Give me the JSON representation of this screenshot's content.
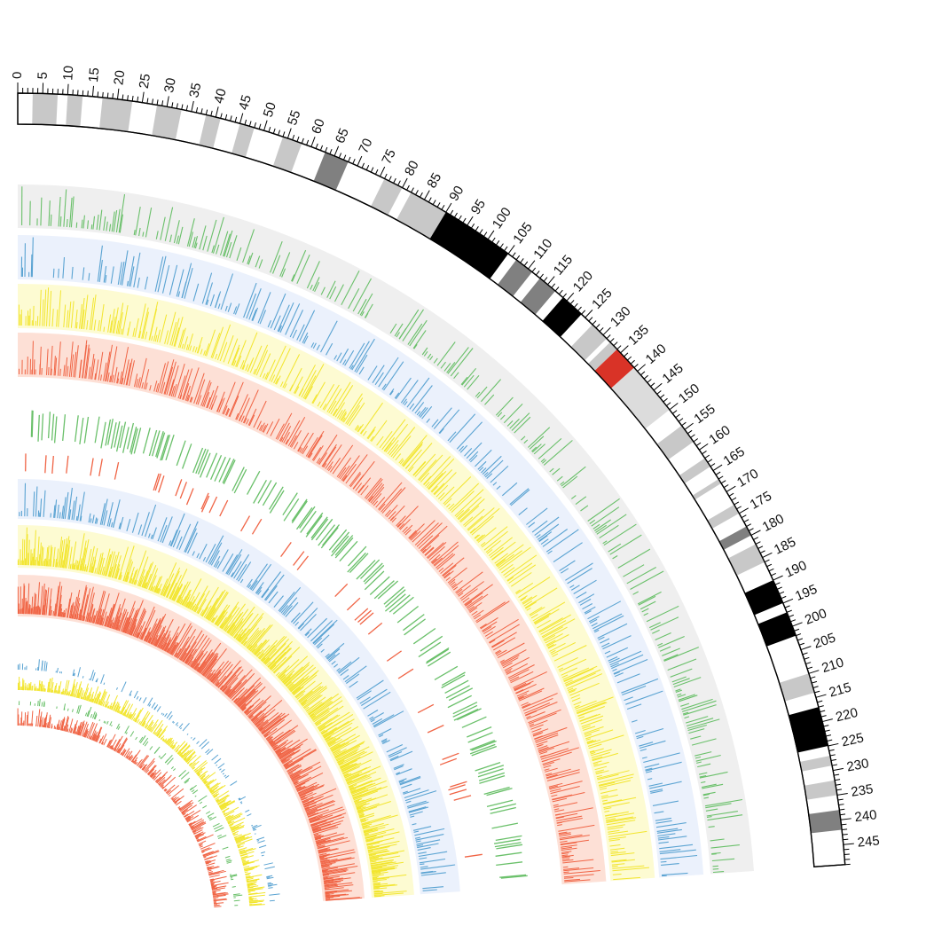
{
  "ideogram": {
    "tick_labels": [
      "0",
      "5",
      "10",
      "15",
      "20",
      "25",
      "30",
      "35",
      "40",
      "45",
      "50",
      "55",
      "60",
      "65",
      "70",
      "75",
      "80",
      "85",
      "90",
      "95",
      "100",
      "105",
      "110",
      "115",
      "120",
      "125",
      "130",
      "135",
      "140",
      "145",
      "150",
      "155",
      "160",
      "165",
      "170",
      "175",
      "180",
      "185",
      "190",
      "195",
      "200",
      "205",
      "210",
      "215",
      "220",
      "225",
      "230",
      "235",
      "240",
      "245"
    ],
    "max_mb": 249,
    "bands": [
      {
        "start": 3,
        "end": 8,
        "color": "#c8c8c8"
      },
      {
        "start": 10,
        "end": 13,
        "color": "#c8c8c8"
      },
      {
        "start": 17,
        "end": 23,
        "color": "#c8c8c8"
      },
      {
        "start": 28,
        "end": 33,
        "color": "#c8c8c8"
      },
      {
        "start": 38,
        "end": 41,
        "color": "#c8c8c8"
      },
      {
        "start": 45,
        "end": 48,
        "color": "#c8c8c8"
      },
      {
        "start": 54,
        "end": 58,
        "color": "#c8c8c8"
      },
      {
        "start": 63,
        "end": 68,
        "color": "#808080"
      },
      {
        "start": 76,
        "end": 80,
        "color": "#c8c8c8"
      },
      {
        "start": 82,
        "end": 90,
        "color": "#c8c8c8"
      },
      {
        "start": 90,
        "end": 105,
        "color": "#000000"
      },
      {
        "start": 107,
        "end": 111,
        "color": "#808080"
      },
      {
        "start": 113,
        "end": 117,
        "color": "#808080"
      },
      {
        "start": 119,
        "end": 124,
        "color": "#000000"
      },
      {
        "start": 127,
        "end": 131,
        "color": "#c8c8c8"
      },
      {
        "start": 132,
        "end": 134,
        "color": "#c8c8c8"
      },
      {
        "start": 134,
        "end": 139,
        "color": "#d93327"
      },
      {
        "start": 139,
        "end": 150,
        "color": "#dcdcdc"
      },
      {
        "start": 154,
        "end": 158,
        "color": "#c8c8c8"
      },
      {
        "start": 162,
        "end": 164,
        "color": "#c8c8c8"
      },
      {
        "start": 167,
        "end": 168,
        "color": "#c8c8c8"
      },
      {
        "start": 173,
        "end": 175,
        "color": "#c8c8c8"
      },
      {
        "start": 178,
        "end": 180,
        "color": "#808080"
      },
      {
        "start": 182,
        "end": 186,
        "color": "#c8c8c8"
      },
      {
        "start": 190,
        "end": 195,
        "color": "#000000"
      },
      {
        "start": 197,
        "end": 202,
        "color": "#000000"
      },
      {
        "start": 210,
        "end": 214,
        "color": "#c8c8c8"
      },
      {
        "start": 217,
        "end": 225,
        "color": "#000000"
      },
      {
        "start": 227,
        "end": 229,
        "color": "#c8c8c8"
      },
      {
        "start": 232,
        "end": 235,
        "color": "#c8c8c8"
      },
      {
        "start": 238,
        "end": 242,
        "color": "#808080"
      }
    ]
  },
  "colors": {
    "green": "#6ac06a",
    "blue": "#5aa3d2",
    "yellow": "#f2e52e",
    "red": "#f06445",
    "bg_gray": "#efefef",
    "bg_blue": "#ebf1fc",
    "bg_yellow": "#fdfbd2",
    "bg_red": "#fde0d6"
  }
}
